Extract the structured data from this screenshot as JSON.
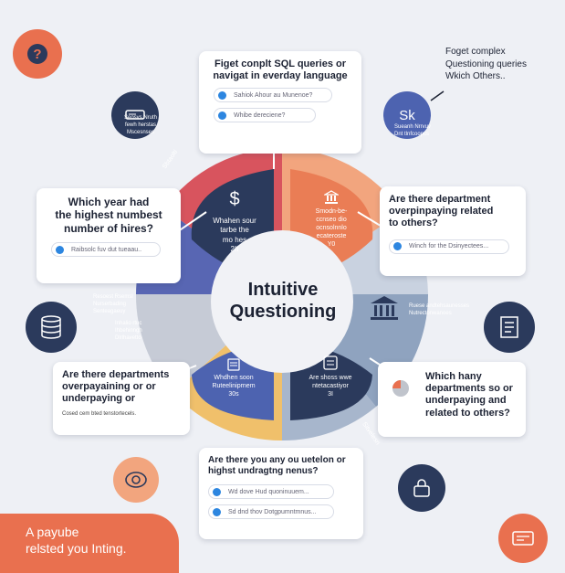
{
  "center": {
    "line1": "Intuitive",
    "line2": "Questioning"
  },
  "top_card": {
    "title_lines": [
      "Figet conplt SQL queries or",
      "navigat in everday language"
    ],
    "pills": [
      "Sahiok Ahour au Munenoe?",
      "Whibe dereciene?"
    ]
  },
  "top_right_note": {
    "lines": [
      "Foget complex",
      "Questioning queries",
      "Wkich Others.."
    ]
  },
  "left_card": {
    "title_lines": [
      "Which year had",
      "the highest numbest",
      "number of hires?"
    ],
    "pill": "Raibsolc fuv dut tueaau.."
  },
  "right_card": {
    "title_lines": [
      "Are there department",
      "overpinpaying related",
      "to others?"
    ],
    "pill": "Winch for the Dsinyectees..."
  },
  "left_bottom_card": {
    "title_lines": [
      "Are there departments",
      "overpayaining or or",
      "underpaying or"
    ],
    "sub": "Cosed cem bted tenstortecels."
  },
  "right_bottom_card": {
    "title_lines": [
      "Which hany",
      "departments so or",
      "underpaying and",
      "related to others?"
    ]
  },
  "bottom_card": {
    "title_lines": [
      "Are there you any ou uetelon or",
      "highst undragtng nenus?"
    ],
    "pills": [
      "Wd dove Hud quoninuuem...",
      "Sd dnd thov Dotgpumntmnus..."
    ]
  },
  "banner": {
    "lines": [
      "A payube",
      "relsted you Inting."
    ]
  },
  "wedges": {
    "dollar_sign": "$",
    "dollar_text": [
      "Whahen sour",
      "tarbe the",
      "mo hes",
      "2II"
    ],
    "orange_text": [
      "Smodn-be-",
      "ccnseo dio",
      "ocnsolnnlo",
      "ecateroste",
      "Y0"
    ],
    "blue_bottom_text": [
      "Whdhen soon",
      "Ruteeliniprnem",
      "30s"
    ],
    "navy_bottom_text": [
      "Are shoss wwe",
      "ntetacastiyor",
      "3I"
    ]
  },
  "small_labels": {
    "sk_text": "Sk",
    "sk_sub": [
      "Sueanh Nrrvuv",
      "Dnt tlnfcoopcs"
    ],
    "server_label": [
      "Seosvs Nruth",
      "fewh herstas",
      "Mscesnses"
    ],
    "left_purple": [
      "Resoest Rsemsl",
      "Nurserbading",
      "Senteagaeuy",
      "Inhalio rtuc",
      "Ihbehinngh",
      "Dlrlhavetto"
    ],
    "right_gray": [
      "Ruese andtehsaunesses",
      "Nutrectonwanoes"
    ],
    "left_red_arc": "Sbtaolti",
    "right_gray_arc": "Sitvelesn"
  },
  "colors": {
    "red": "#d8545e",
    "orange": "#ea7d55",
    "salmon": "#f2a57e",
    "navy": "#2b3a5c",
    "blue": "#4d63b0",
    "gray_blue": "#8fa3bf",
    "yellow": "#f0c06b",
    "banner": "#e9704f"
  },
  "icons": [
    "question-icon",
    "server-icon",
    "database-icon",
    "bank-icon",
    "document-icon",
    "shield-icon",
    "calculator-icon",
    "lock-icon",
    "pie-chart-icon",
    "stack-icon"
  ]
}
